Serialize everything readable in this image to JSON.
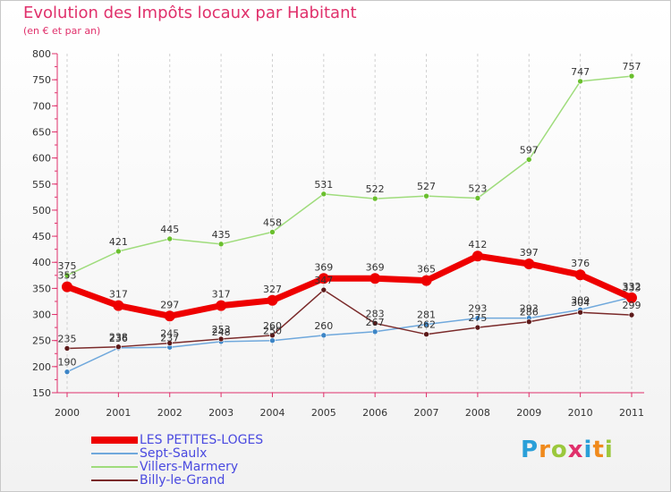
{
  "header": {
    "title": "Evolution des Impôts locaux par Habitant",
    "subtitle": "(en € et par an)"
  },
  "logo": {
    "letters": [
      "P",
      "r",
      "o",
      "x",
      "i",
      "t",
      "i"
    ],
    "colors": [
      "#2a9fd8",
      "#f08a1c",
      "#9bc83c",
      "#e0306b",
      "#2a9fd8",
      "#f08a1c",
      "#9bc83c"
    ]
  },
  "chart_data": {
    "type": "line",
    "title": "Evolution des Impôts locaux par Habitant",
    "subtitle": "(en € et par an)",
    "xlabel": "",
    "ylabel": "",
    "categories": [
      "2000",
      "2001",
      "2002",
      "2003",
      "2004",
      "2005",
      "2006",
      "2007",
      "2008",
      "2009",
      "2010",
      "2011"
    ],
    "ylim": [
      150,
      800
    ],
    "yticks": [
      150,
      200,
      250,
      300,
      350,
      400,
      450,
      500,
      550,
      600,
      650,
      700,
      750,
      800
    ],
    "ytick_labels": [
      "150",
      "200",
      "250",
      "300",
      "350",
      "400",
      "450",
      "500",
      "550",
      "600",
      "650",
      "700",
      "750",
      "800"
    ],
    "grid": "vertical dashed",
    "legend_position": "bottom-left",
    "series": [
      {
        "name": "LES PETITES-LOGES",
        "color": "#ee0000",
        "emphasis": "thick",
        "values": [
          353,
          317,
          297,
          317,
          327,
          369,
          369,
          365,
          412,
          397,
          376,
          332
        ],
        "labels": [
          "353",
          "317",
          "297",
          "317",
          "327",
          "369",
          "369",
          "365",
          "412",
          "397",
          "376",
          "332"
        ]
      },
      {
        "name": "Sept-Saulx",
        "color": "#6fa8dc",
        "point_color": "#3d85c6",
        "emphasis": "thin",
        "values": [
          190,
          236,
          237,
          248,
          250,
          260,
          267,
          281,
          293,
          293,
          309,
          333
        ],
        "labels": [
          "190",
          "236",
          "237",
          "248",
          "250",
          "260",
          "267",
          "281",
          "293",
          "293",
          "309",
          "333"
        ]
      },
      {
        "name": "Villers-Marmery",
        "color": "#9fdc7c",
        "point_color": "#6abf2e",
        "emphasis": "thin",
        "values": [
          375,
          421,
          445,
          435,
          458,
          531,
          522,
          527,
          523,
          597,
          747,
          757
        ],
        "labels": [
          "375",
          "421",
          "445",
          "435",
          "458",
          "531",
          "522",
          "527",
          "523",
          "597",
          "747",
          "757"
        ]
      },
      {
        "name": "Billy-le-Grand",
        "color": "#7a2a2a",
        "point_color": "#5c1a1a",
        "emphasis": "thin",
        "values": [
          235,
          238,
          245,
          253,
          260,
          347,
          283,
          262,
          275,
          286,
          304,
          299
        ],
        "labels": [
          "235",
          "238",
          "245",
          "253",
          "260",
          "347",
          "283",
          "262",
          "275",
          "286",
          "304",
          "299"
        ]
      }
    ]
  }
}
